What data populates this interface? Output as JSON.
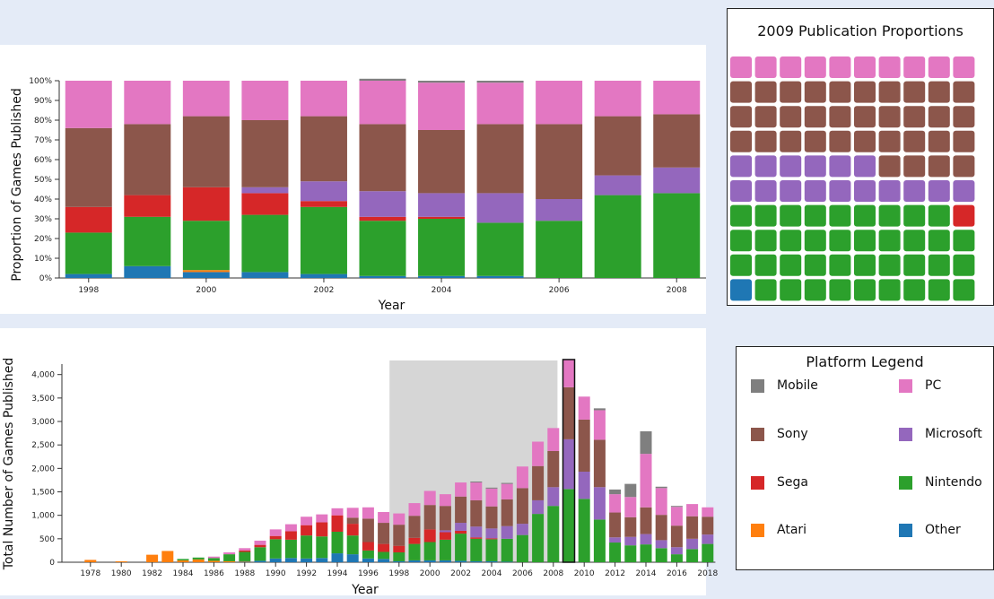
{
  "platforms": [
    {
      "name": "Mobile",
      "color": "#7f7f7f"
    },
    {
      "name": "PC",
      "color": "#e377c2"
    },
    {
      "name": "Sony",
      "color": "#8c564b"
    },
    {
      "name": "Microsoft",
      "color": "#9467bd"
    },
    {
      "name": "Sega",
      "color": "#d62728"
    },
    {
      "name": "Nintendo",
      "color": "#2ca02c"
    },
    {
      "name": "Atari",
      "color": "#ff7f0e"
    },
    {
      "name": "Other",
      "color": "#1f77b4"
    }
  ],
  "legend": {
    "title": "Platform Legend"
  },
  "chart_data": [
    {
      "type": "bar",
      "stacked": "normalized",
      "xlabel": "Year",
      "ylabel": "Proportion of Games Published",
      "ylim": [
        0,
        1
      ],
      "y_ticks": [
        "0%",
        "10%",
        "20%",
        "30%",
        "40%",
        "50%",
        "60%",
        "70%",
        "80%",
        "90%",
        "100%"
      ],
      "x_tick_labels": [
        "1998",
        "2000",
        "2002",
        "2004",
        "2006",
        "2008"
      ],
      "categories": [
        "1998",
        "1999",
        "2000",
        "2001",
        "2002",
        "2003",
        "2004",
        "2005",
        "2006",
        "2007",
        "2008"
      ],
      "stack_order": [
        "Other",
        "Atari",
        "Nintendo",
        "Sega",
        "Microsoft",
        "Sony",
        "PC",
        "Mobile"
      ],
      "series": [
        {
          "name": "Other",
          "values": [
            0.02,
            0.06,
            0.03,
            0.03,
            0.02,
            0.01,
            0.01,
            0.01,
            0,
            0,
            0
          ]
        },
        {
          "name": "Atari",
          "values": [
            0,
            0,
            0.01,
            0,
            0,
            0,
            0,
            0,
            0,
            0,
            0
          ]
        },
        {
          "name": "Nintendo",
          "values": [
            0.21,
            0.25,
            0.25,
            0.29,
            0.34,
            0.28,
            0.29,
            0.27,
            0.29,
            0.42,
            0.43
          ]
        },
        {
          "name": "Sega",
          "values": [
            0.13,
            0.11,
            0.17,
            0.11,
            0.03,
            0.02,
            0.01,
            0,
            0,
            0,
            0
          ]
        },
        {
          "name": "Microsoft",
          "values": [
            0,
            0,
            0,
            0.03,
            0.1,
            0.13,
            0.12,
            0.15,
            0.11,
            0.1,
            0.13
          ]
        },
        {
          "name": "Sony",
          "values": [
            0.4,
            0.36,
            0.36,
            0.34,
            0.33,
            0.34,
            0.32,
            0.35,
            0.38,
            0.3,
            0.27
          ]
        },
        {
          "name": "PC",
          "values": [
            0.24,
            0.22,
            0.18,
            0.2,
            0.18,
            0.22,
            0.24,
            0.21,
            0.22,
            0.18,
            0.17
          ]
        },
        {
          "name": "Mobile",
          "values": [
            0,
            0,
            0,
            0,
            0,
            0.01,
            0.01,
            0.01,
            0,
            0,
            0
          ]
        }
      ]
    },
    {
      "type": "bar",
      "stacked": "absolute",
      "xlabel": "Year",
      "ylabel": "Total Number of Games Published",
      "ylim": [
        0,
        4300
      ],
      "y_ticks": [
        "0",
        "500",
        "1,000",
        "1,500",
        "2,000",
        "2,500",
        "3,000",
        "3,500",
        "4,000"
      ],
      "x_tick_labels": [
        "1978",
        "1980",
        "1982",
        "1984",
        "1986",
        "1988",
        "1990",
        "1992",
        "1994",
        "1996",
        "1998",
        "2000",
        "2002",
        "2004",
        "2006",
        "2008",
        "2010",
        "2012",
        "2014",
        "2016",
        "2018"
      ],
      "categories": [
        "1977",
        "1978",
        "1979",
        "1980",
        "1981",
        "1982",
        "1983",
        "1984",
        "1985",
        "1986",
        "1987",
        "1988",
        "1989",
        "1990",
        "1991",
        "1992",
        "1993",
        "1994",
        "1995",
        "1996",
        "1997",
        "1998",
        "1999",
        "2000",
        "2001",
        "2002",
        "2003",
        "2004",
        "2005",
        "2006",
        "2007",
        "2008",
        "2009",
        "2010",
        "2011",
        "2012",
        "2013",
        "2014",
        "2015",
        "2016",
        "2017",
        "2018"
      ],
      "highlight_range": [
        "1998",
        "2008"
      ],
      "selected_category": "2009",
      "stack_order": [
        "Other",
        "Atari",
        "Nintendo",
        "Sega",
        "Microsoft",
        "Sony",
        "PC",
        "Mobile"
      ],
      "series": [
        {
          "name": "Other",
          "values": [
            0,
            0,
            0,
            0,
            0,
            0,
            0,
            0,
            0,
            0,
            0,
            10,
            30,
            80,
            90,
            80,
            90,
            190,
            170,
            80,
            70,
            20,
            40,
            40,
            40,
            30,
            20,
            20,
            10,
            0,
            0,
            0,
            0,
            0,
            0,
            0,
            0,
            0,
            0,
            0,
            0,
            0
          ]
        },
        {
          "name": "Atari",
          "values": [
            0,
            50,
            0,
            20,
            0,
            160,
            240,
            40,
            60,
            30,
            20,
            10,
            0,
            0,
            0,
            0,
            0,
            0,
            0,
            0,
            0,
            0,
            0,
            0,
            0,
            0,
            0,
            0,
            0,
            0,
            0,
            0,
            0,
            0,
            0,
            0,
            0,
            0,
            0,
            0,
            0,
            0
          ]
        },
        {
          "name": "Nintendo",
          "values": [
            0,
            0,
            0,
            0,
            0,
            0,
            0,
            30,
            40,
            60,
            150,
            200,
            290,
            410,
            390,
            490,
            460,
            460,
            400,
            170,
            150,
            190,
            350,
            390,
            440,
            580,
            480,
            470,
            490,
            580,
            1030,
            1200,
            1560,
            1350,
            910,
            420,
            360,
            380,
            300,
            170,
            280,
            390
          ]
        },
        {
          "name": "Sega",
          "values": [
            0,
            0,
            0,
            0,
            0,
            0,
            0,
            0,
            0,
            0,
            0,
            30,
            50,
            70,
            180,
            220,
            300,
            350,
            250,
            180,
            170,
            140,
            130,
            270,
            160,
            60,
            30,
            20,
            0,
            0,
            0,
            0,
            0,
            0,
            0,
            0,
            0,
            0,
            0,
            0,
            0,
            0
          ]
        },
        {
          "name": "Microsoft",
          "values": [
            0,
            0,
            0,
            0,
            0,
            0,
            0,
            0,
            0,
            0,
            0,
            0,
            0,
            0,
            0,
            0,
            0,
            0,
            0,
            0,
            0,
            0,
            0,
            0,
            40,
            170,
            230,
            210,
            270,
            240,
            290,
            400,
            1060,
            580,
            690,
            110,
            180,
            220,
            170,
            150,
            220,
            200
          ]
        },
        {
          "name": "Sony",
          "values": [
            0,
            0,
            0,
            0,
            0,
            0,
            0,
            0,
            0,
            0,
            0,
            0,
            0,
            0,
            0,
            0,
            0,
            0,
            130,
            500,
            450,
            450,
            470,
            520,
            520,
            560,
            560,
            470,
            570,
            760,
            730,
            770,
            1110,
            1110,
            1010,
            530,
            420,
            570,
            540,
            460,
            480,
            380
          ]
        },
        {
          "name": "PC",
          "values": [
            0,
            0,
            0,
            0,
            0,
            0,
            0,
            0,
            0,
            30,
            40,
            50,
            90,
            140,
            150,
            180,
            170,
            150,
            210,
            240,
            230,
            240,
            270,
            300,
            250,
            300,
            380,
            380,
            330,
            460,
            520,
            490,
            590,
            490,
            630,
            390,
            430,
            1140,
            570,
            400,
            260,
            200
          ]
        },
        {
          "name": "Mobile",
          "values": [
            0,
            0,
            0,
            0,
            0,
            0,
            0,
            0,
            0,
            0,
            0,
            0,
            0,
            0,
            0,
            0,
            0,
            0,
            0,
            0,
            0,
            0,
            0,
            0,
            0,
            0,
            20,
            20,
            20,
            0,
            0,
            0,
            0,
            0,
            40,
            100,
            280,
            480,
            30,
            20,
            0,
            0
          ]
        }
      ]
    },
    {
      "type": "waffle",
      "title": "2009 Publication Proportions",
      "rows": 10,
      "cols": 10,
      "fill_order": [
        "Other",
        "Nintendo",
        "Sega",
        "Microsoft",
        "Sony",
        "PC"
      ],
      "cells": [
        {
          "name": "Other",
          "count": 1
        },
        {
          "name": "Nintendo",
          "count": 38
        },
        {
          "name": "Sega",
          "count": 1
        },
        {
          "name": "Microsoft",
          "count": 16
        },
        {
          "name": "Sony",
          "count": 34
        },
        {
          "name": "PC",
          "count": 10
        }
      ]
    }
  ]
}
